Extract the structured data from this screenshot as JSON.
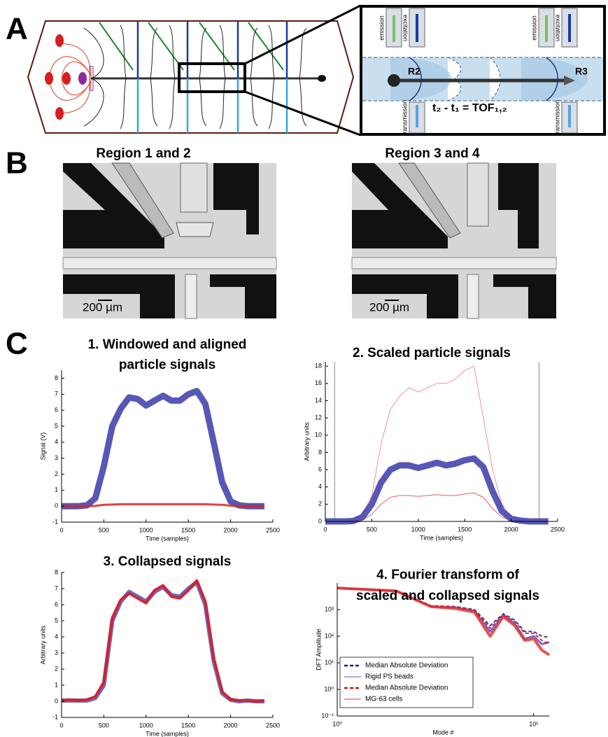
{
  "panel_labels": [
    "A",
    "B",
    "C"
  ],
  "diagram": {
    "labels": [
      "emission",
      "excitation",
      "R2",
      "emission",
      "excitation",
      "R3",
      "transmission",
      "transmission"
    ],
    "equation": "t₂ - t₁ = TOF₁,₂"
  },
  "micrographs": {
    "titles": [
      "Region 1 and 2",
      "Region 3 and 4"
    ],
    "scale_bars": [
      "200 µm",
      "200 µm"
    ]
  },
  "chart_data": [
    {
      "type": "line",
      "title": [
        "1. Windowed and aligned",
        "particle signals"
      ],
      "xlabel": "Time (samples)",
      "ylabel": "Signal (V)",
      "x": [
        0,
        100,
        200,
        300,
        400,
        500,
        600,
        700,
        800,
        900,
        1000,
        1100,
        1200,
        1300,
        1400,
        1500,
        1600,
        1700,
        1800,
        1900,
        2000,
        2100,
        2200,
        2300,
        2400
      ],
      "series": [
        {
          "color": "#3a3aa8",
          "values": [
            0,
            0,
            0,
            0.05,
            0.5,
            2.5,
            5,
            6.1,
            6.8,
            6.7,
            6.3,
            6.6,
            6.9,
            6.6,
            6.6,
            7.0,
            7.2,
            6.4,
            4,
            1.5,
            0.3,
            0.05,
            0,
            0,
            0
          ]
        },
        {
          "color": "#e02020",
          "values": [
            0,
            0,
            0,
            0,
            0.02,
            0.08,
            0.1,
            0.12,
            0.12,
            0.12,
            0.12,
            0.12,
            0.12,
            0.12,
            0.12,
            0.12,
            0.12,
            0.12,
            0.1,
            0.08,
            0.03,
            0,
            0,
            0,
            0
          ]
        }
      ],
      "xlim": [
        0,
        2500
      ],
      "xticks": [
        0,
        500,
        1000,
        1500,
        2000,
        2500
      ],
      "ylim": [
        -1,
        8.5
      ],
      "yticks": [
        -1,
        0,
        1,
        2,
        3,
        4,
        5,
        6,
        7,
        8
      ]
    },
    {
      "type": "line",
      "title": [
        "2. Scaled particle signals"
      ],
      "xlabel": "Time (samples)",
      "ylabel": "Arbitrary units",
      "x": [
        0,
        100,
        200,
        300,
        400,
        500,
        600,
        700,
        800,
        900,
        1000,
        1100,
        1200,
        1300,
        1400,
        1500,
        1600,
        1700,
        1800,
        1900,
        2000,
        2100,
        2200,
        2300,
        2400
      ],
      "series": [
        {
          "color": "#f08080",
          "values": [
            0,
            0,
            0,
            0.1,
            0.8,
            3,
            9,
            13,
            14.5,
            15.5,
            15,
            15.5,
            16,
            16,
            16.5,
            17.5,
            18,
            12,
            6,
            2,
            0.5,
            0.1,
            0,
            0,
            0
          ]
        },
        {
          "color": "#e84040",
          "values": [
            0,
            0,
            0,
            0,
            0.2,
            0.8,
            2,
            2.8,
            3,
            3,
            2.9,
            3,
            3.1,
            3,
            3,
            3.2,
            3.3,
            2.8,
            1.5,
            0.5,
            0.1,
            0,
            0,
            0,
            0
          ]
        },
        {
          "color": "#3a3aa8",
          "values": [
            0,
            0,
            0,
            0.05,
            0.5,
            2,
            4.5,
            6,
            6.5,
            6.5,
            6.2,
            6.5,
            6.8,
            6.5,
            6.7,
            7.1,
            7.3,
            6.3,
            3.5,
            1.2,
            0.3,
            0.1,
            0,
            0,
            0
          ]
        }
      ],
      "vlines": [
        100,
        2300
      ],
      "xlim": [
        0,
        2500
      ],
      "xticks": [
        0,
        500,
        1000,
        1500,
        2000,
        2500
      ],
      "ylim": [
        0,
        18.5
      ],
      "yticks": [
        0,
        2,
        4,
        6,
        8,
        10,
        12,
        14,
        16,
        18
      ]
    },
    {
      "type": "line",
      "title": [
        "3. Collapsed signals"
      ],
      "xlabel": "Time (samples)",
      "ylabel": "Arbitrary units",
      "x": [
        0,
        100,
        200,
        300,
        400,
        500,
        600,
        700,
        800,
        900,
        1000,
        1100,
        1200,
        1300,
        1400,
        1500,
        1600,
        1700,
        1800,
        1900,
        2000,
        2100,
        2200,
        2300,
        2400
      ],
      "series": [
        {
          "color": "#5050c0",
          "values": [
            0.05,
            0.05,
            0.05,
            0.05,
            0.2,
            1,
            5,
            6.2,
            6.8,
            6.5,
            6.2,
            6.8,
            7.1,
            6.6,
            6.5,
            7,
            7.4,
            6,
            2.5,
            0.5,
            0.1,
            0,
            0.05,
            0,
            0
          ]
        },
        {
          "color": "#e01818",
          "values": [
            0.05,
            0.1,
            0.05,
            0.1,
            0.3,
            1.2,
            5.2,
            6.3,
            6.7,
            6.4,
            6.1,
            6.9,
            7.2,
            6.5,
            6.4,
            6.9,
            7.5,
            6.2,
            2.7,
            0.6,
            0.1,
            0.05,
            0.05,
            0,
            0.05
          ]
        }
      ],
      "xlim": [
        0,
        2500
      ],
      "xticks": [
        0,
        500,
        1000,
        1500,
        2000,
        2500
      ],
      "ylim": [
        -1,
        8
      ],
      "yticks": [
        -1,
        0,
        1,
        2,
        3,
        4,
        5,
        6,
        7,
        8
      ]
    },
    {
      "type": "line",
      "title": [
        "4. Fourier transform of",
        "scaled and collapsed signals"
      ],
      "xlabel": "Mode #",
      "ylabel": "DFT Amplitude",
      "xscale": "log",
      "yscale": "log",
      "legend": "lower left",
      "x": [
        1,
        2,
        3,
        4,
        5,
        6,
        7,
        8,
        9,
        10,
        11,
        12
      ],
      "series": [
        {
          "name": "Median Absolute Deviation",
          "color": "#1a1a8c",
          "line_style": "dashed",
          "values": [
            6500,
            5000,
            1400,
            1300,
            1000,
            250,
            700,
            400,
            150,
            150,
            100,
            90
          ]
        },
        {
          "name": "Rigid PS beads",
          "color": "#5555cc",
          "values": [
            6500,
            5000,
            1300,
            1200,
            900,
            150,
            600,
            300,
            80,
            100,
            50,
            60
          ]
        },
        {
          "name": "Median Absolute Deviation",
          "color": "#d01010",
          "line_style": "dashed",
          "values": [
            6500,
            5000,
            1400,
            1250,
            950,
            200,
            650,
            350,
            130,
            130,
            70,
            50
          ]
        },
        {
          "name": "MG-63 cells",
          "color": "#e83030",
          "values": [
            6500,
            5000,
            1300,
            1100,
            800,
            100,
            550,
            250,
            70,
            80,
            30,
            20
          ]
        }
      ],
      "xlim": [
        1,
        12
      ],
      "xticks": [
        {
          "value": 1,
          "label": "10⁰"
        },
        {
          "value": 10,
          "label": "10¹"
        }
      ],
      "ylim": [
        0.1,
        10000
      ],
      "yticks": [
        {
          "value": 0.1,
          "label": "10⁻¹"
        },
        {
          "value": 1,
          "label": "10⁰"
        },
        {
          "value": 10,
          "label": "10¹"
        },
        {
          "value": 100,
          "label": "10²"
        },
        {
          "value": 1000,
          "label": "10³"
        }
      ]
    }
  ]
}
